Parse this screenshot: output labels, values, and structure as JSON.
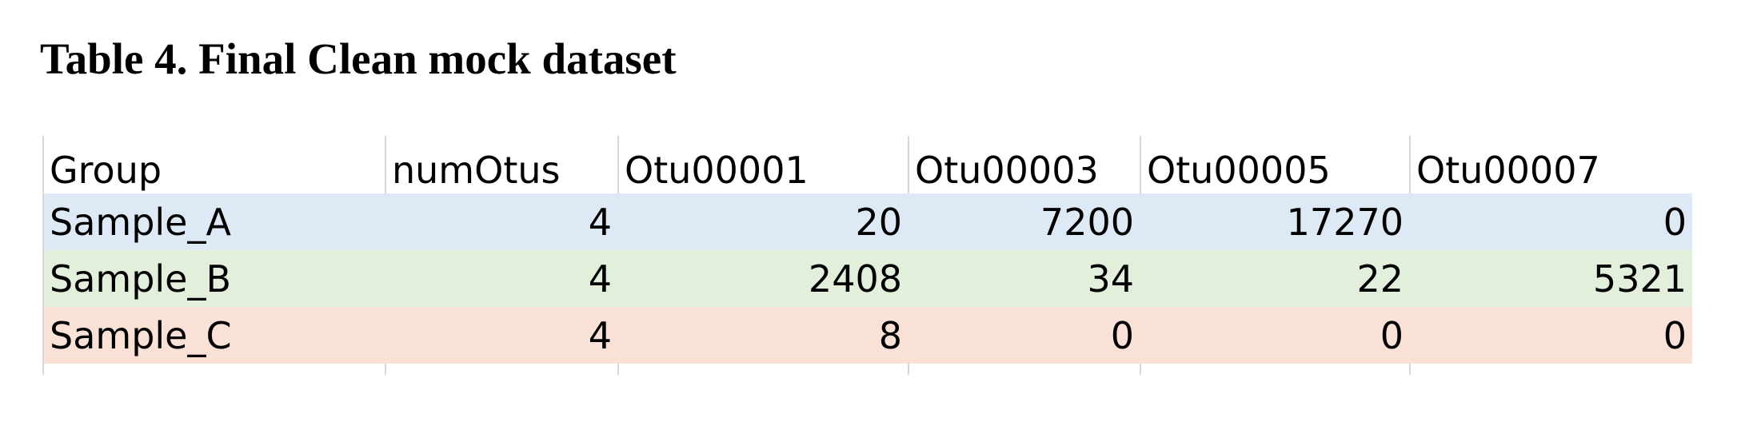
{
  "title": "Table 4. Final Clean mock dataset",
  "table": {
    "headers": [
      "Group",
      "numOtus",
      "Otu00001",
      "Otu00003",
      "Otu00005",
      "Otu00007"
    ],
    "rows": [
      {
        "group": "Sample_A",
        "numOtus": "4",
        "otu00001": "20",
        "otu00003": "7200",
        "otu00005": "17270",
        "otu00007": "0",
        "color": "#dde9f5"
      },
      {
        "group": "Sample_B",
        "numOtus": "4",
        "otu00001": "2408",
        "otu00003": "34",
        "otu00005": "22",
        "otu00007": "5321",
        "color": "#e1efdb"
      },
      {
        "group": "Sample_C",
        "numOtus": "4",
        "otu00001": "8",
        "otu00003": "0",
        "otu00005": "0",
        "otu00007": "0",
        "color": "#fae1d6"
      }
    ]
  }
}
